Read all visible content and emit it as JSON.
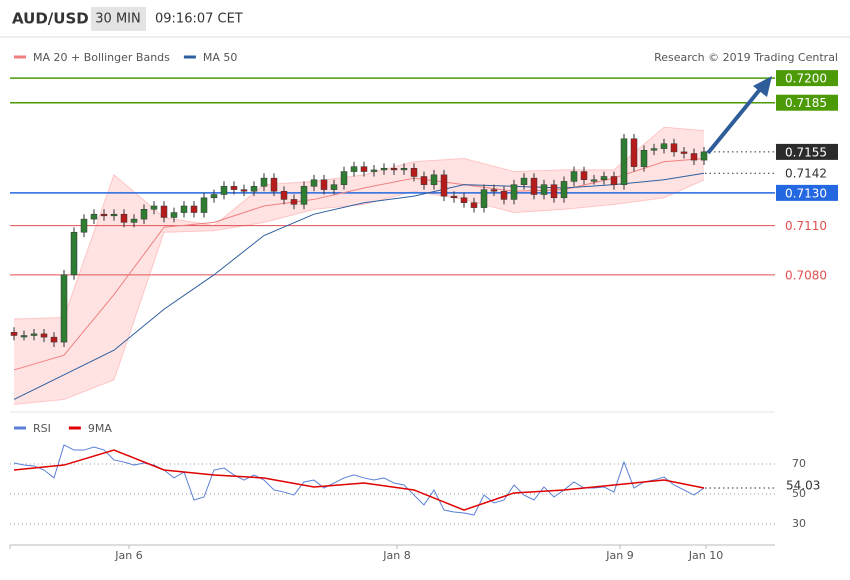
{
  "header": {
    "symbol": "AUD/USD",
    "interval": "30 MIN",
    "time": "09:16:07 CET"
  },
  "chart_data": [
    {
      "type": "candlestick",
      "legend": [
        {
          "name": "MA 20 + Bollinger Bands",
          "color": "#f08080"
        },
        {
          "name": "MA 50",
          "color": "#2e5f9e"
        }
      ],
      "credit": "Research © 2019 Trading Central",
      "up_color": "#2e7d32",
      "down_color": "#b71c1c",
      "band_color": "#ffe3e3",
      "open": [
        0.7045,
        0.7043,
        0.7043,
        0.7044,
        0.7042,
        0.7039,
        0.708,
        0.7106,
        0.7114,
        0.7117,
        0.7116,
        0.7117,
        0.7112,
        0.7114,
        0.712,
        0.7122,
        0.7115,
        0.7118,
        0.7122,
        0.7118,
        0.7127,
        0.7129,
        0.7134,
        0.7132,
        0.7131,
        0.7134,
        0.7139,
        0.7131,
        0.7126,
        0.7123,
        0.7134,
        0.7138,
        0.7132,
        0.7135,
        0.7143,
        0.7146,
        0.7143,
        0.7144,
        0.7145,
        0.7144,
        0.7145,
        0.714,
        0.7135,
        0.7141,
        0.7128,
        0.7127,
        0.7124,
        0.7121,
        0.7132,
        0.7131,
        0.7126,
        0.7135,
        0.7139,
        0.7129,
        0.7135,
        0.7127,
        0.7137,
        0.7143,
        0.7138,
        0.7138,
        0.714,
        0.7135,
        0.7163,
        0.7146,
        0.7156,
        0.7157,
        0.716,
        0.7155,
        0.7154,
        0.715
      ],
      "high": [
        0.7048,
        0.7046,
        0.7047,
        0.7047,
        0.7045,
        0.7083,
        0.7109,
        0.7117,
        0.712,
        0.712,
        0.712,
        0.712,
        0.7117,
        0.7123,
        0.7125,
        0.7125,
        0.7121,
        0.7125,
        0.7125,
        0.713,
        0.7132,
        0.7137,
        0.7137,
        0.7135,
        0.7137,
        0.7142,
        0.7142,
        0.7134,
        0.7129,
        0.7137,
        0.7141,
        0.7141,
        0.7138,
        0.7146,
        0.7149,
        0.7149,
        0.7147,
        0.7148,
        0.7148,
        0.7148,
        0.7148,
        0.7143,
        0.7144,
        0.7144,
        0.7131,
        0.713,
        0.7127,
        0.7135,
        0.7135,
        0.7134,
        0.7138,
        0.7142,
        0.7142,
        0.7138,
        0.7138,
        0.714,
        0.7146,
        0.7146,
        0.7141,
        0.7143,
        0.7143,
        0.7166,
        0.7166,
        0.7159,
        0.716,
        0.7163,
        0.7163,
        0.7158,
        0.7157,
        0.7158
      ],
      "low": [
        0.704,
        0.704,
        0.704,
        0.7039,
        0.7036,
        0.7036,
        0.7077,
        0.7103,
        0.7111,
        0.7113,
        0.7113,
        0.7109,
        0.7109,
        0.7111,
        0.7117,
        0.7112,
        0.7112,
        0.7115,
        0.7115,
        0.7115,
        0.7124,
        0.7126,
        0.7129,
        0.7128,
        0.7128,
        0.7131,
        0.7128,
        0.7123,
        0.712,
        0.712,
        0.7131,
        0.7129,
        0.7129,
        0.7132,
        0.714,
        0.714,
        0.714,
        0.7141,
        0.7141,
        0.7141,
        0.7137,
        0.7132,
        0.7132,
        0.7125,
        0.7124,
        0.7121,
        0.7118,
        0.7118,
        0.7128,
        0.7123,
        0.7123,
        0.7132,
        0.7126,
        0.7126,
        0.7124,
        0.7124,
        0.7134,
        0.7135,
        0.7135,
        0.7135,
        0.7132,
        0.7132,
        0.7143,
        0.7143,
        0.7153,
        0.7154,
        0.7152,
        0.7151,
        0.7147,
        0.7147
      ],
      "close": [
        0.7043,
        0.7043,
        0.7044,
        0.7042,
        0.7039,
        0.708,
        0.7106,
        0.7114,
        0.7117,
        0.7116,
        0.7117,
        0.7112,
        0.7114,
        0.712,
        0.7122,
        0.7115,
        0.7118,
        0.7122,
        0.7118,
        0.7127,
        0.7129,
        0.7134,
        0.7132,
        0.7131,
        0.7134,
        0.7139,
        0.7131,
        0.7126,
        0.7123,
        0.7134,
        0.7138,
        0.7132,
        0.7135,
        0.7143,
        0.7146,
        0.7143,
        0.7144,
        0.7145,
        0.7144,
        0.7145,
        0.714,
        0.7135,
        0.7141,
        0.7128,
        0.7127,
        0.7124,
        0.7121,
        0.7132,
        0.7131,
        0.7126,
        0.7135,
        0.7139,
        0.7129,
        0.7135,
        0.7127,
        0.7137,
        0.7143,
        0.7138,
        0.7138,
        0.714,
        0.7135,
        0.7163,
        0.7146,
        0.7156,
        0.7157,
        0.716,
        0.7155,
        0.7154,
        0.715,
        0.7155
      ],
      "line_x": [
        0,
        5,
        10,
        15,
        20,
        25,
        30,
        35,
        40,
        45,
        50,
        55,
        60,
        65,
        69
      ],
      "ma20": [
        0.7022,
        0.7031,
        0.7068,
        0.7109,
        0.7112,
        0.7122,
        0.7126,
        0.7133,
        0.7139,
        0.7135,
        0.7131,
        0.7132,
        0.7139,
        0.7149,
        0.7151
      ],
      "ma50": [
        0.7004,
        0.7019,
        0.7034,
        0.7059,
        0.708,
        0.7104,
        0.7117,
        0.7124,
        0.7128,
        0.7135,
        0.7134,
        0.7133,
        0.7135,
        0.7138,
        0.7142
      ],
      "bb_upper": [
        0.7053,
        0.7054,
        0.7141,
        0.7115,
        0.711,
        0.7135,
        0.7137,
        0.7141,
        0.7149,
        0.7151,
        0.7143,
        0.7144,
        0.7144,
        0.717,
        0.7168
      ],
      "bb_lower": [
        0.7001,
        0.7004,
        0.7016,
        0.7106,
        0.7107,
        0.7112,
        0.712,
        0.7123,
        0.7131,
        0.7126,
        0.7118,
        0.712,
        0.7123,
        0.7127,
        0.7138
      ],
      "ylim": [
        0.7,
        0.7208
      ],
      "levels": [
        {
          "value": 0.72,
          "label": "0.7200",
          "color": "#4c9a06",
          "filled": true,
          "dotted": false
        },
        {
          "value": 0.7185,
          "label": "0.7185",
          "color": "#4c9a06",
          "filled": true,
          "dotted": false
        },
        {
          "value": 0.7155,
          "label": "0.7155",
          "color": "#2b2b2b",
          "filled": true,
          "dotted": true
        },
        {
          "value": 0.7142,
          "label": "0.7142",
          "color": "#2e5f9e",
          "filled": false,
          "dotted": true
        },
        {
          "value": 0.713,
          "label": "0.7130",
          "color": "#2368e0",
          "filled": true,
          "dotted": false
        },
        {
          "value": 0.711,
          "label": "0.7110",
          "color": "#e05050",
          "filled": false,
          "dotted": false
        },
        {
          "value": 0.708,
          "label": "0.7080",
          "color": "#e05050",
          "filled": false,
          "dotted": false
        }
      ]
    },
    {
      "type": "line",
      "series": [
        {
          "name": "RSI",
          "color": "#5b7fd6",
          "values": [
            70.7,
            69.3,
            68.7,
            66,
            60.7,
            82.7,
            79.3,
            79.3,
            81.3,
            79.3,
            72.7,
            71.3,
            69.3,
            70.7,
            69.3,
            66,
            60.7,
            64.7,
            46,
            48,
            66,
            67.3,
            62.7,
            59.3,
            62.7,
            59.3,
            52.7,
            51.3,
            49.3,
            58,
            59.3,
            54,
            57.3,
            60.7,
            62.7,
            60.7,
            59.3,
            60.7,
            57.3,
            56,
            49.3,
            42.7,
            52.7,
            39.3,
            38,
            37.3,
            36,
            49.3,
            44,
            46,
            56,
            49.3,
            46,
            54.7,
            48,
            52.7,
            58,
            54,
            54,
            54.7,
            51.3,
            71.3,
            54,
            58,
            59.3,
            61.3,
            56,
            52.7,
            49.3,
            54.03
          ]
        },
        {
          "name": "9MA",
          "color": "#e00000",
          "x": [
            0,
            5,
            10,
            15,
            20,
            25,
            30,
            35,
            40,
            45,
            50,
            55,
            60,
            65,
            69
          ],
          "values": [
            66,
            69.3,
            79.3,
            66,
            62.7,
            60.7,
            54.7,
            57.3,
            52.7,
            39.3,
            50.7,
            52.7,
            56,
            59.3,
            54
          ]
        }
      ],
      "ylim": [
        20,
        100
      ],
      "yticks": [
        70,
        50,
        30
      ],
      "grid": true,
      "xticks": [
        {
          "value": 11.5,
          "label": "Jan 6"
        },
        {
          "value": 38.3,
          "label": "Jan 8"
        },
        {
          "value": 60.6,
          "label": "Jan 9"
        },
        {
          "value": 69.2,
          "label": "Jan 10"
        }
      ]
    }
  ]
}
